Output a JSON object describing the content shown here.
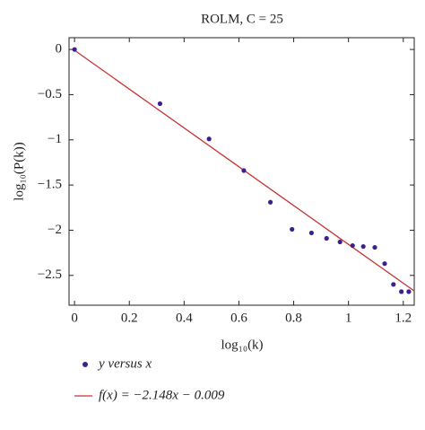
{
  "chart_data": {
    "type": "scatter",
    "title": "ROLM, C = 25",
    "x_label": "log₁₀(k)",
    "y_label": "log₁₀(P(k))",
    "xlim": [
      -0.02,
      1.24
    ],
    "ylim": [
      -2.83,
      0.13
    ],
    "xticks": [
      0,
      0.2,
      0.4,
      0.6,
      0.8,
      1,
      1.2
    ],
    "yticks": [
      0,
      {
        "value": -0.5,
        "label": "−0.5"
      },
      {
        "value": -1,
        "label": "−1"
      },
      {
        "value": -1.5,
        "label": "−1.5"
      },
      {
        "value": -2,
        "label": "−2"
      },
      {
        "value": -2.5,
        "label": "−2.5"
      }
    ],
    "series": [
      {
        "name": "y versus x",
        "color": "#3d1f8f",
        "x": [
          0,
          0.312,
          0.491,
          0.618,
          0.715,
          0.794,
          0.865,
          0.92,
          0.969,
          1.015,
          1.054,
          1.096,
          1.132,
          1.164,
          1.193,
          1.22
        ],
        "values": [
          0,
          -0.6,
          -0.99,
          -1.34,
          -1.69,
          -1.99,
          -2.03,
          -2.09,
          -2.13,
          -2.17,
          -2.18,
          -2.19,
          -2.37,
          -2.6,
          -2.68,
          -2.68
        ]
      },
      {
        "name": "f(x) = −2.148x − 0.009",
        "color": "#c83232",
        "slope": -2.148,
        "intercept": -0.009
      }
    ]
  }
}
